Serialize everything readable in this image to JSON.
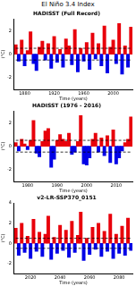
{
  "title": "El Niño 3.4 Index",
  "chart_data": [
    {
      "type": "bar",
      "title": "HADISST (Full Record)",
      "x_label": "Time (years)",
      "y_label": "(°C)",
      "grid": false,
      "categories": [
        null,
        null,
        null,
        "1880",
        null,
        null,
        null,
        null,
        null,
        null,
        null,
        null,
        null,
        "1920",
        null,
        null,
        null,
        null,
        null,
        null,
        null,
        null,
        null,
        "1960",
        null,
        null,
        null,
        null,
        null,
        null,
        null,
        null,
        null,
        "2000",
        null,
        null,
        null,
        null,
        null,
        null
      ],
      "series": [
        {
          "color": "#e8000b",
          "values": [
            0.8,
            null,
            1.2,
            null,
            0.3,
            1.9,
            null,
            null,
            0.6,
            1.1,
            null,
            0.9,
            null,
            1.5,
            null,
            0.4,
            null,
            1.3,
            0.7,
            null,
            2.1,
            null,
            0.5,
            null,
            1.0,
            null,
            1.8,
            null,
            0.9,
            null,
            2.4,
            null,
            0.6,
            1.2,
            null,
            2.6,
            null,
            0.7,
            null,
            2.3
          ]
        },
        {
          "color": "#0000e6",
          "values": [
            null,
            -0.6,
            null,
            -1.0,
            null,
            null,
            -0.8,
            -1.4,
            null,
            null,
            -0.5,
            null,
            -1.2,
            null,
            -0.7,
            null,
            -1.1,
            null,
            null,
            -0.9,
            null,
            -1.5,
            null,
            -0.6,
            null,
            -1.3,
            null,
            -0.4,
            null,
            -1.0,
            null,
            -1.6,
            null,
            null,
            -0.8,
            null,
            -1.7,
            null,
            -1.1,
            null
          ]
        }
      ],
      "threshold_lines": [
        -0.5,
        0.5
      ],
      "ylim": [
        -3,
        3
      ],
      "yticks": [
        -2,
        0,
        2
      ]
    },
    {
      "type": "bar",
      "title": "HADISST (1976 - 2016)",
      "x_label": "Time (years)",
      "y_label": "(°C)",
      "grid": false,
      "categories": [
        null,
        null,
        null,
        null,
        "1980",
        null,
        null,
        null,
        null,
        null,
        null,
        null,
        null,
        null,
        "1990",
        null,
        null,
        null,
        null,
        null,
        null,
        null,
        null,
        null,
        "2000",
        null,
        null,
        null,
        null,
        null,
        null,
        null,
        null,
        null,
        "2010",
        null,
        null,
        null,
        null,
        null
      ],
      "series": [
        {
          "color": "#e8000b",
          "values": [
            0.3,
            null,
            0.6,
            0.2,
            null,
            0.5,
            2.2,
            null,
            null,
            0.4,
            1.3,
            1.5,
            null,
            null,
            0.5,
            1.0,
            0.6,
            0.4,
            1.1,
            null,
            null,
            0.4,
            2.6,
            null,
            null,
            null,
            0.6,
            1.1,
            null,
            0.7,
            null,
            0.9,
            null,
            1.4,
            null,
            null,
            null,
            0.3,
            0.6,
            2.5
          ]
        },
        {
          "color": "#0000e6",
          "values": [
            null,
            -0.4,
            null,
            null,
            -0.3,
            null,
            null,
            -0.6,
            -0.9,
            null,
            null,
            null,
            -1.8,
            -1.1,
            null,
            null,
            null,
            null,
            null,
            -0.7,
            -0.5,
            null,
            null,
            -1.5,
            -1.6,
            -1.0,
            null,
            null,
            -0.5,
            null,
            -0.8,
            null,
            -1.4,
            null,
            -1.5,
            -1.0,
            -0.4,
            null,
            null,
            null
          ]
        }
      ],
      "threshold_lines": [
        -0.5,
        0.5
      ],
      "ylim": [
        -3,
        3
      ],
      "yticks": [
        -2,
        0,
        2
      ]
    },
    {
      "type": "bar",
      "title": "v2-LR-SSP370_0151",
      "x_label": "Time (years)",
      "y_label": "(°C)",
      "grid": false,
      "categories": [
        null,
        null,
        null,
        null,
        null,
        "2020",
        null,
        null,
        null,
        null,
        null,
        null,
        null,
        null,
        null,
        "2040",
        null,
        null,
        null,
        null,
        null,
        null,
        null,
        null,
        null,
        "2060",
        null,
        null,
        null,
        null,
        null,
        null,
        null,
        null,
        null,
        "2080",
        null,
        null,
        null,
        null
      ],
      "series": [
        {
          "color": "#e8000b",
          "values": [
            1.5,
            null,
            2.0,
            null,
            0.7,
            null,
            2.4,
            null,
            1.1,
            null,
            0.9,
            2.7,
            null,
            0.6,
            null,
            1.8,
            null,
            1.3,
            null,
            2.2,
            null,
            0.8,
            3.1,
            null,
            0.5,
            null,
            1.6,
            null,
            2.0,
            null,
            1.2,
            null,
            2.9,
            null,
            0.9,
            null,
            1.7,
            null,
            2.5,
            null
          ]
        },
        {
          "color": "#0000e6",
          "values": [
            null,
            -1.2,
            null,
            -0.9,
            null,
            -1.5,
            null,
            -0.8,
            null,
            -1.3,
            null,
            null,
            -1.6,
            null,
            -1.0,
            null,
            -0.7,
            null,
            -1.4,
            null,
            -0.9,
            null,
            null,
            -1.7,
            null,
            -1.1,
            null,
            -0.6,
            null,
            -1.3,
            null,
            -0.8,
            null,
            -1.5,
            null,
            -1.0,
            null,
            -1.2,
            null,
            -0.7
          ]
        }
      ],
      "threshold_lines": [
        -0.5,
        0.5
      ],
      "ylim": [
        -3,
        4
      ],
      "yticks": [
        -2,
        0,
        2,
        4
      ]
    }
  ]
}
